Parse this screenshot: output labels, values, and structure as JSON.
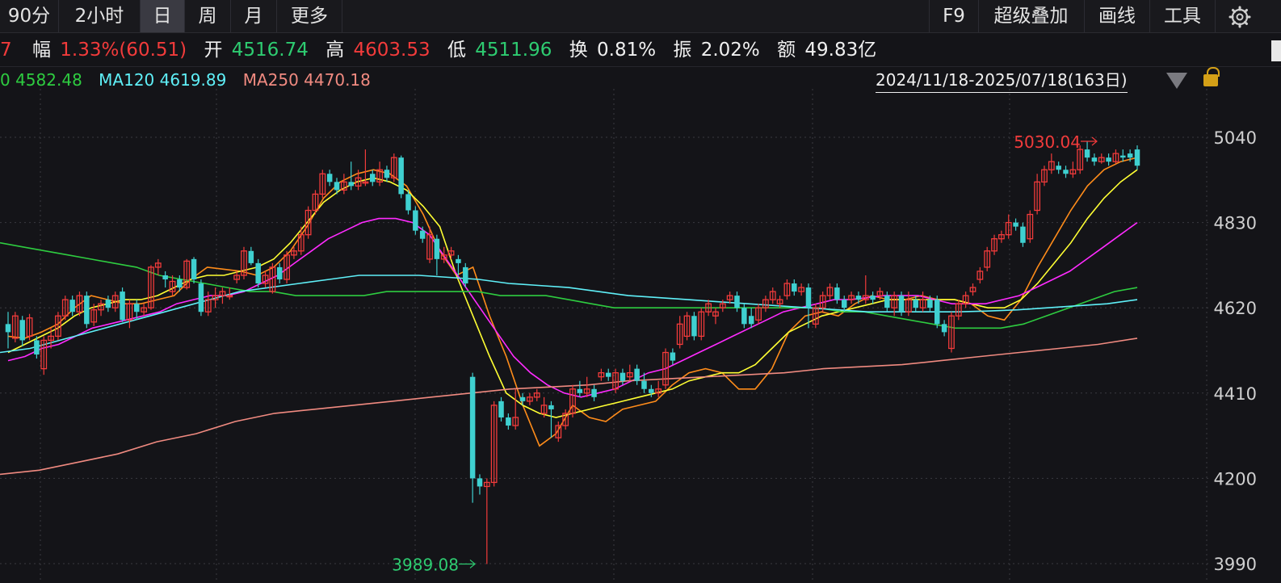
{
  "toolbar": {
    "periods": [
      "90分",
      "2小时",
      "日",
      "周",
      "月",
      "更多"
    ],
    "active_period": "日",
    "tools": [
      "F9",
      "超级叠加",
      "画线",
      "工具"
    ],
    "settings_icon": "gear-icon"
  },
  "quote": {
    "partial_lead": "7",
    "change_label": "幅",
    "change_value": "1.33%(60.51)",
    "open_label": "开",
    "open_value": "4516.74",
    "high_label": "高",
    "high_value": "4603.53",
    "low_label": "低",
    "low_value": "4511.96",
    "turnover_label": "换",
    "turnover_value": "0.81%",
    "amplitude_label": "振",
    "amplitude_value": "2.02%",
    "amount_label": "额",
    "amount_value": "49.83亿"
  },
  "ma_legend": {
    "ma60_partial": "0 4582.48",
    "ma120": "MA120 4619.89",
    "ma250": "MA250 4470.18"
  },
  "date_range": "2024/11/18-2025/07/18(163日)",
  "colors": {
    "up": "#f23b3b",
    "down": "#3fd0d0",
    "ma5": "#ff8c1a",
    "ma10": "#ffff33",
    "ma20": "#ff2bff",
    "ma60": "#2ecc40",
    "ma120": "#5ff0f8",
    "ma250": "#f08a80",
    "grid": "#3a3a40",
    "background": "#141418"
  },
  "chart_data": {
    "type": "candlestick",
    "y_axis_ticks": [
      5040,
      4830,
      4620,
      4410,
      4200,
      3990
    ],
    "ylim": [
      3980,
      5120
    ],
    "grid": "dotted",
    "max_marker": "5030.04",
    "min_marker": "3989.08",
    "candles": [
      [
        4580,
        4560,
        4610,
        4520
      ],
      [
        4545,
        4600,
        4610,
        4535
      ],
      [
        4590,
        4540,
        4600,
        4525
      ],
      [
        4550,
        4595,
        4605,
        4540
      ],
      [
        4540,
        4505,
        4550,
        4495
      ],
      [
        4470,
        4540,
        4550,
        4455
      ],
      [
        4540,
        4550,
        4570,
        4520
      ],
      [
        4550,
        4600,
        4610,
        4540
      ],
      [
        4600,
        4640,
        4650,
        4590
      ],
      [
        4640,
        4610,
        4650,
        4600
      ],
      [
        4610,
        4650,
        4660,
        4600
      ],
      [
        4650,
        4580,
        4660,
        4570
      ],
      [
        4585,
        4615,
        4630,
        4575
      ],
      [
        4615,
        4630,
        4640,
        4600
      ],
      [
        4640,
        4620,
        4650,
        4610
      ],
      [
        4620,
        4650,
        4660,
        4610
      ],
      [
        4660,
        4590,
        4670,
        4585
      ],
      [
        4590,
        4630,
        4640,
        4570
      ],
      [
        4630,
        4610,
        4640,
        4590
      ],
      [
        4610,
        4620,
        4630,
        4600
      ],
      [
        4620,
        4720,
        4725,
        4615
      ],
      [
        4720,
        4730,
        4740,
        4700
      ],
      [
        4700,
        4690,
        4710,
        4670
      ],
      [
        4660,
        4685,
        4700,
        4650
      ],
      [
        4690,
        4670,
        4700,
        4660
      ],
      [
        4670,
        4735,
        4740,
        4665
      ],
      [
        4740,
        4690,
        4745,
        4680
      ],
      [
        4680,
        4610,
        4690,
        4600
      ],
      [
        4610,
        4640,
        4660,
        4600
      ],
      [
        4640,
        4650,
        4670,
        4620
      ],
      [
        4650,
        4660,
        4670,
        4630
      ],
      [
        4650,
        4650,
        4670,
        4640
      ],
      [
        4690,
        4700,
        4710,
        4680
      ],
      [
        4700,
        4760,
        4770,
        4690
      ],
      [
        4760,
        4730,
        4770,
        4725
      ],
      [
        4730,
        4680,
        4740,
        4670
      ],
      [
        4680,
        4700,
        4710,
        4670
      ],
      [
        4660,
        4720,
        4730,
        4655
      ],
      [
        4720,
        4690,
        4730,
        4680
      ],
      [
        4690,
        4750,
        4760,
        4680
      ],
      [
        4750,
        4760,
        4770,
        4740
      ],
      [
        4760,
        4800,
        4820,
        4750
      ],
      [
        4800,
        4860,
        4870,
        4790
      ],
      [
        4860,
        4900,
        4910,
        4850
      ],
      [
        4900,
        4950,
        4960,
        4890
      ],
      [
        4950,
        4930,
        4960,
        4920
      ],
      [
        4930,
        4910,
        4940,
        4900
      ],
      [
        4910,
        4930,
        4950,
        4900
      ],
      [
        4930,
        4920,
        4980,
        4910
      ],
      [
        4920,
        4940,
        4960,
        4910
      ],
      [
        4930,
        4930,
        5010,
        4920
      ],
      [
        4950,
        4930,
        4960,
        4920
      ],
      [
        4930,
        4960,
        4980,
        4920
      ],
      [
        4960,
        4940,
        4970,
        4930
      ],
      [
        4940,
        4990,
        5000,
        4930
      ],
      [
        4990,
        4900,
        4995,
        4890
      ],
      [
        4900,
        4860,
        4910,
        4850
      ],
      [
        4860,
        4810,
        4870,
        4800
      ],
      [
        4810,
        4790,
        4820,
        4780
      ],
      [
        4740,
        4800,
        4820,
        4730
      ],
      [
        4790,
        4740,
        4800,
        4700
      ],
      [
        4740,
        4750,
        4770,
        4730
      ],
      [
        4750,
        4760,
        4770,
        4740
      ],
      [
        4740,
        4730,
        4750,
        4700
      ],
      [
        4720,
        4680,
        4730,
        4670
      ],
      [
        4450,
        4200,
        4460,
        4140
      ],
      [
        4200,
        4180,
        4210,
        4160
      ],
      [
        4180,
        4190,
        4200,
        3989
      ],
      [
        4190,
        4380,
        4390,
        4180
      ],
      [
        4390,
        4350,
        4400,
        4340
      ],
      [
        4350,
        4330,
        4360,
        4320
      ],
      [
        4330,
        4350,
        4420,
        4320
      ],
      [
        4400,
        4390,
        4410,
        4380
      ],
      [
        4390,
        4400,
        4410,
        4380
      ],
      [
        4400,
        4410,
        4420,
        4390
      ],
      [
        4360,
        4380,
        4400,
        4350
      ],
      [
        4380,
        4370,
        4390,
        4300
      ],
      [
        4300,
        4330,
        4340,
        4290
      ],
      [
        4330,
        4360,
        4370,
        4320
      ],
      [
        4360,
        4420,
        4430,
        4350
      ],
      [
        4420,
        4410,
        4440,
        4400
      ],
      [
        4410,
        4420,
        4450,
        4400
      ],
      [
        4420,
        4400,
        4430,
        4390
      ],
      [
        4450,
        4460,
        4470,
        4440
      ],
      [
        4460,
        4450,
        4470,
        4440
      ],
      [
        4420,
        4460,
        4470,
        4410
      ],
      [
        4460,
        4440,
        4470,
        4430
      ],
      [
        4450,
        4460,
        4480,
        4440
      ],
      [
        4470,
        4440,
        4480,
        4430
      ],
      [
        4440,
        4420,
        4460,
        4410
      ],
      [
        4420,
        4410,
        4430,
        4400
      ],
      [
        4410,
        4420,
        4440,
        4400
      ],
      [
        4430,
        4510,
        4520,
        4420
      ],
      [
        4510,
        4490,
        4520,
        4480
      ],
      [
        4530,
        4580,
        4600,
        4520
      ],
      [
        4550,
        4600,
        4610,
        4540
      ],
      [
        4600,
        4550,
        4610,
        4540
      ],
      [
        4550,
        4610,
        4620,
        4540
      ],
      [
        4610,
        4630,
        4640,
        4600
      ],
      [
        4600,
        4610,
        4620,
        4580
      ],
      [
        4620,
        4630,
        4640,
        4610
      ],
      [
        4640,
        4650,
        4660,
        4630
      ],
      [
        4650,
        4620,
        4660,
        4610
      ],
      [
        4620,
        4580,
        4630,
        4570
      ],
      [
        4600,
        4580,
        4620,
        4570
      ],
      [
        4590,
        4620,
        4630,
        4580
      ],
      [
        4620,
        4640,
        4650,
        4610
      ],
      [
        4640,
        4660,
        4670,
        4630
      ],
      [
        4630,
        4640,
        4650,
        4620
      ],
      [
        4650,
        4680,
        4690,
        4640
      ],
      [
        4680,
        4660,
        4690,
        4650
      ],
      [
        4660,
        4670,
        4680,
        4650
      ],
      [
        4670,
        4620,
        4680,
        4570
      ],
      [
        4580,
        4620,
        4630,
        4570
      ],
      [
        4620,
        4650,
        4660,
        4610
      ],
      [
        4650,
        4670,
        4680,
        4640
      ],
      [
        4670,
        4640,
        4680,
        4630
      ],
      [
        4640,
        4620,
        4650,
        4610
      ],
      [
        4640,
        4650,
        4660,
        4630
      ],
      [
        4650,
        4640,
        4660,
        4630
      ],
      [
        4640,
        4650,
        4700,
        4630
      ],
      [
        4650,
        4640,
        4660,
        4630
      ],
      [
        4650,
        4660,
        4670,
        4640
      ],
      [
        4650,
        4620,
        4660,
        4610
      ],
      [
        4620,
        4650,
        4660,
        4600
      ],
      [
        4650,
        4610,
        4660,
        4600
      ],
      [
        4610,
        4640,
        4660,
        4600
      ],
      [
        4640,
        4620,
        4650,
        4610
      ],
      [
        4620,
        4640,
        4660,
        4610
      ],
      [
        4640,
        4620,
        4650,
        4610
      ],
      [
        4640,
        4580,
        4650,
        4570
      ],
      [
        4580,
        4560,
        4590,
        4550
      ],
      [
        4520,
        4600,
        4610,
        4510
      ],
      [
        4600,
        4630,
        4640,
        4590
      ],
      [
        4630,
        4650,
        4660,
        4620
      ],
      [
        4660,
        4670,
        4680,
        4650
      ],
      [
        4690,
        4710,
        4720,
        4680
      ],
      [
        4720,
        4760,
        4770,
        4710
      ],
      [
        4760,
        4790,
        4800,
        4750
      ],
      [
        4790,
        4800,
        4810,
        4780
      ],
      [
        4800,
        4830,
        4850,
        4790
      ],
      [
        4830,
        4820,
        4840,
        4810
      ],
      [
        4820,
        4780,
        4830,
        4770
      ],
      [
        4790,
        4850,
        4860,
        4780
      ],
      [
        4860,
        4930,
        4950,
        4850
      ],
      [
        4930,
        4960,
        4970,
        4920
      ],
      [
        4960,
        4980,
        5000,
        4950
      ],
      [
        4970,
        4960,
        4980,
        4950
      ],
      [
        4960,
        4950,
        4970,
        4940
      ],
      [
        4950,
        4960,
        4980,
        4940
      ],
      [
        4960,
        5010,
        5020,
        4950
      ],
      [
        5010,
        4990,
        5030,
        4980
      ],
      [
        4990,
        4980,
        5000,
        4970
      ],
      [
        4980,
        4990,
        5000,
        4975
      ],
      [
        4990,
        4980,
        5000,
        4970
      ],
      [
        4980,
        5000,
        5010,
        4975
      ],
      [
        4995,
        4990,
        5010,
        4980
      ],
      [
        5000,
        4990,
        5010,
        4980
      ],
      [
        5010,
        4970,
        5020,
        4960
      ]
    ],
    "ma_series": [
      {
        "name": "MA5",
        "values": [
          4550,
          4545,
          4560,
          4580,
          4620,
          4650,
          4640,
          4630,
          4630,
          4640,
          4650,
          4690,
          4720,
          4715,
          4710,
          4700,
          4720,
          4760,
          4820,
          4890,
          4930,
          4950,
          4960,
          4950,
          4920,
          4850,
          4760,
          4700,
          4720,
          4600,
          4500,
          4380,
          4280,
          4310,
          4380,
          4350,
          4340,
          4370,
          4380,
          4390,
          4430,
          4460,
          4470,
          4460,
          4420,
          4420,
          4470,
          4560,
          4600,
          4610,
          4600,
          4630,
          4650,
          4640,
          4640,
          4650,
          4640,
          4640,
          4630,
          4600,
          4590,
          4640,
          4720,
          4790,
          4860,
          4920,
          4960,
          4980,
          4990
        ]
      },
      {
        "name": "MA10",
        "values": [
          4510,
          4530,
          4550,
          4570,
          4600,
          4620,
          4630,
          4640,
          4640,
          4650,
          4670,
          4690,
          4700,
          4700,
          4710,
          4720,
          4740,
          4780,
          4830,
          4880,
          4910,
          4930,
          4940,
          4930,
          4910,
          4870,
          4820,
          4700,
          4600,
          4500,
          4410,
          4380,
          4360,
          4350,
          4360,
          4370,
          4380,
          4390,
          4400,
          4410,
          4420,
          4440,
          4450,
          4460,
          4460,
          4480,
          4520,
          4560,
          4580,
          4600,
          4610,
          4620,
          4630,
          4640,
          4640,
          4640,
          4640,
          4640,
          4630,
          4620,
          4620,
          4640,
          4680,
          4730,
          4780,
          4840,
          4890,
          4930,
          4960
        ]
      },
      {
        "name": "MA20",
        "values": [
          4490,
          4500,
          4520,
          4530,
          4550,
          4570,
          4580,
          4590,
          4600,
          4610,
          4630,
          4640,
          4650,
          4650,
          4660,
          4680,
          4700,
          4730,
          4760,
          4790,
          4810,
          4830,
          4840,
          4840,
          4830,
          4800,
          4740,
          4680,
          4620,
          4560,
          4500,
          4460,
          4430,
          4410,
          4400,
          4410,
          4420,
          4440,
          4460,
          4470,
          4490,
          4510,
          4530,
          4550,
          4570,
          4590,
          4610,
          4620,
          4630,
          4640,
          4640,
          4645,
          4650,
          4650,
          4650,
          4640,
          4630,
          4630,
          4630,
          4640,
          4650,
          4670,
          4690,
          4710,
          4740,
          4770,
          4800,
          4830
        ]
      },
      {
        "name": "MA60",
        "values": [
          4780,
          4770,
          4760,
          4750,
          4740,
          4730,
          4720,
          4700,
          4690,
          4680,
          4670,
          4660,
          4660,
          4650,
          4650,
          4650,
          4650,
          4660,
          4660,
          4660,
          4660,
          4660,
          4650,
          4650,
          4650,
          4640,
          4630,
          4620,
          4620,
          4620,
          4620,
          4620,
          4620,
          4620,
          4620,
          4620,
          4620,
          4610,
          4610,
          4600,
          4590,
          4580,
          4570,
          4570,
          4570,
          4580,
          4600,
          4620,
          4640,
          4660,
          4670
        ]
      },
      {
        "name": "MA120",
        "values": [
          4510,
          4520,
          4540,
          4560,
          4580,
          4600,
          4620,
          4640,
          4660,
          4670,
          4680,
          4690,
          4700,
          4700,
          4700,
          4695,
          4690,
          4680,
          4675,
          4670,
          4660,
          4650,
          4645,
          4640,
          4635,
          4630,
          4625,
          4620,
          4615,
          4610,
          4610,
          4610,
          4610,
          4612,
          4615,
          4620,
          4625,
          4630,
          4640
        ]
      },
      {
        "name": "MA250",
        "values": [
          4210,
          4220,
          4240,
          4260,
          4290,
          4310,
          4340,
          4360,
          4370,
          4380,
          4390,
          4400,
          4410,
          4420,
          4425,
          4430,
          4440,
          4445,
          4450,
          4455,
          4460,
          4470,
          4475,
          4480,
          4490,
          4500,
          4510,
          4520,
          4530,
          4545
        ]
      }
    ]
  }
}
